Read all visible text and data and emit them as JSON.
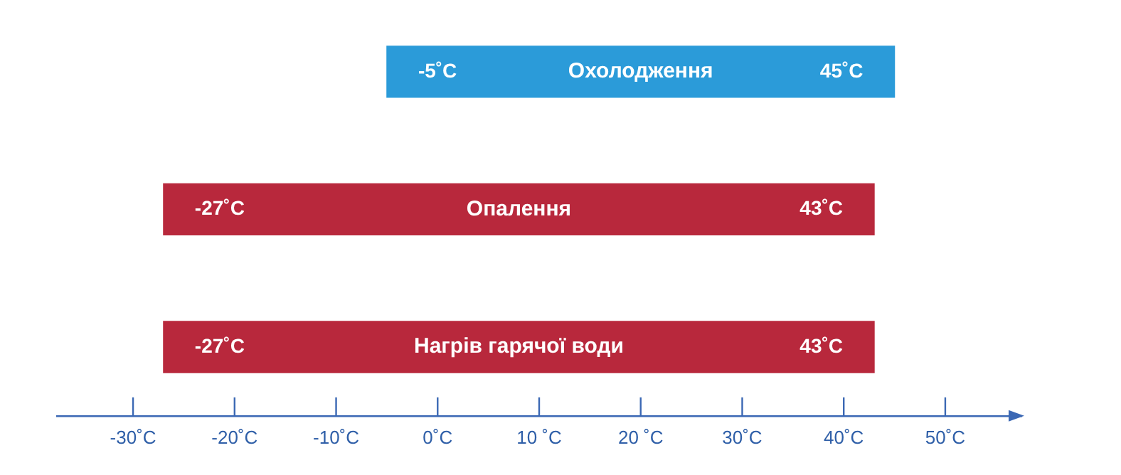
{
  "chart_data": {
    "type": "bar",
    "orientation": "horizontal",
    "categories": [
      "Охолодження",
      "Опалення",
      "Нагрів гарячої води"
    ],
    "base": [
      -5,
      -27,
      -27
    ],
    "values": [
      50,
      70,
      70
    ],
    "colors": [
      "#2b9bd9",
      "#b8283c",
      "#b8283c"
    ],
    "xlim": [
      -37.5,
      57.5
    ],
    "xticks": [
      {
        "value": -30,
        "label": "-30˚C"
      },
      {
        "value": -20,
        "label": "-20˚C"
      },
      {
        "value": -10,
        "label": "-10˚C"
      },
      {
        "value": 0,
        "label": "0˚C"
      },
      {
        "value": 10,
        "label": "10 ˚C"
      },
      {
        "value": 20,
        "label": "20 ˚C"
      },
      {
        "value": 30,
        "label": "30˚C"
      },
      {
        "value": 40,
        "label": "40˚C"
      },
      {
        "value": 50,
        "label": "50˚C"
      }
    ],
    "annotations": [
      {
        "text": "-5˚C",
        "x": -5,
        "y": "Охолодження"
      },
      {
        "text": "45˚C",
        "x": 45,
        "y": "Охолодження"
      },
      {
        "text": "-27˚C",
        "x": -27,
        "y": "Опалення"
      },
      {
        "text": "43˚C",
        "x": 43,
        "y": "Опалення"
      },
      {
        "text": "-27˚C",
        "x": -27,
        "y": "Нагрів гарячої води"
      },
      {
        "text": "43˚C",
        "x": 43,
        "y": "Нагрів гарячої води"
      }
    ],
    "grid": false,
    "legend": false,
    "tick_labels": "x"
  }
}
